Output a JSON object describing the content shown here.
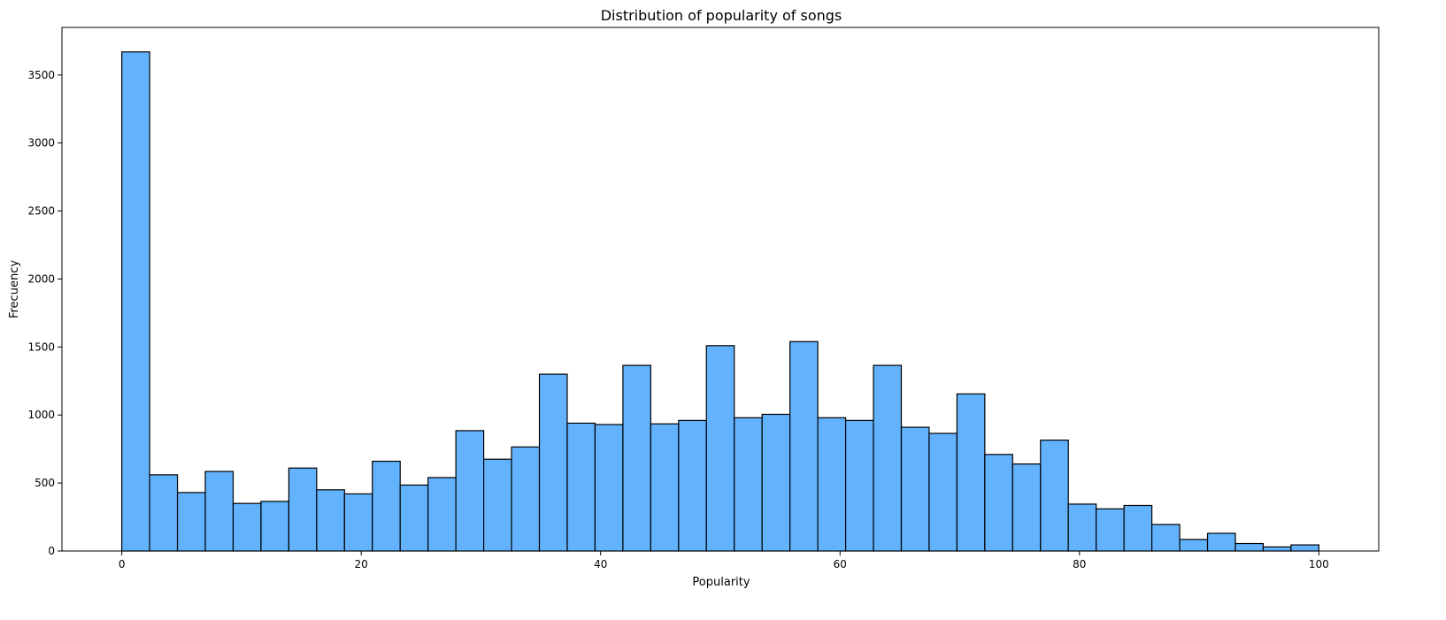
{
  "chart_data": {
    "type": "bar",
    "title": "Distribution of popularity of songs",
    "xlabel": "Popularity",
    "ylabel": "Frecuency",
    "xlim": [
      -5,
      105
    ],
    "ylim": [
      0,
      3850
    ],
    "xticks": [
      0,
      20,
      40,
      60,
      80,
      100
    ],
    "yticks": [
      0,
      500,
      1000,
      1500,
      2000,
      2500,
      3000,
      3500
    ],
    "bin_start": 0,
    "bin_width": 2.3256,
    "bar_color": "#63b2fe",
    "edge_color": "#000000",
    "grid": false,
    "values": [
      3670,
      560,
      430,
      585,
      350,
      365,
      610,
      450,
      420,
      660,
      485,
      540,
      885,
      675,
      765,
      1300,
      940,
      930,
      1365,
      935,
      960,
      1510,
      980,
      1005,
      1540,
      980,
      960,
      1365,
      910,
      865,
      1155,
      710,
      640,
      815,
      345,
      310,
      335,
      195,
      85,
      130,
      55,
      30,
      45
    ]
  }
}
